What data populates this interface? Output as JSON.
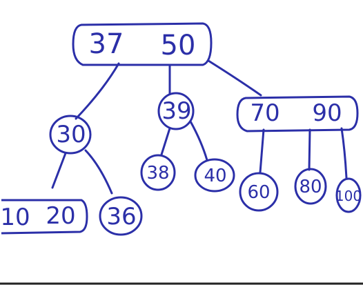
{
  "diagram": {
    "type": "b-tree",
    "root": {
      "keys": [
        "37",
        "50"
      ]
    },
    "level1": [
      {
        "keys": [
          "30"
        ]
      },
      {
        "keys": [
          "39"
        ]
      },
      {
        "keys": [
          "70",
          "90"
        ]
      }
    ],
    "level2": [
      {
        "keys": [
          "10",
          "20"
        ]
      },
      {
        "keys": [
          "36"
        ]
      },
      {
        "keys": [
          "38"
        ]
      },
      {
        "keys": [
          "40"
        ]
      },
      {
        "keys": [
          "60"
        ]
      },
      {
        "keys": [
          "80"
        ]
      },
      {
        "keys": [
          "100"
        ]
      }
    ],
    "ink_color": "#2b2fa8"
  }
}
